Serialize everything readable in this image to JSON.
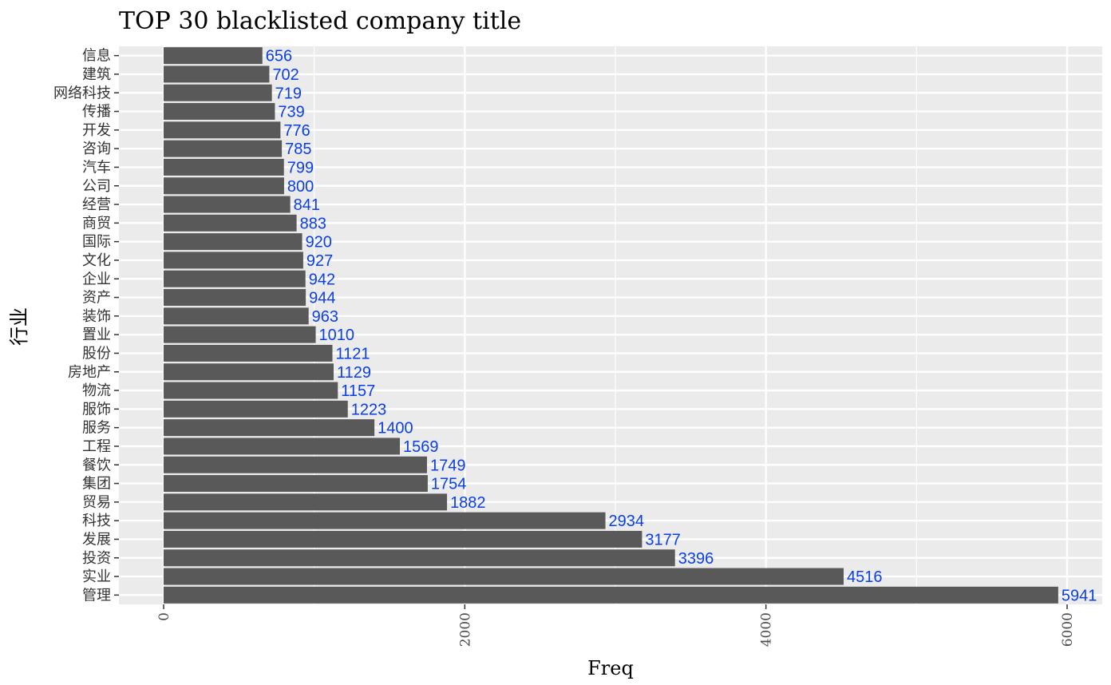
{
  "chart_data": {
    "type": "bar",
    "orientation": "horizontal",
    "title": "TOP 30 blacklisted company title",
    "xlabel": "Freq",
    "ylabel": "行业",
    "xlim": [
      -300,
      6250
    ],
    "xticks": [
      0,
      2000,
      4000,
      6000
    ],
    "minor_gridlines": true,
    "grid": true,
    "legend": "none",
    "categories": [
      "管理",
      "实业",
      "投资",
      "发展",
      "科技",
      "贸易",
      "集团",
      "餐饮",
      "工程",
      "服务",
      "服饰",
      "物流",
      "房地产",
      "股份",
      "置业",
      "装饰",
      "资产",
      "企业",
      "文化",
      "国际",
      "商贸",
      "经营",
      "公司",
      "汽车",
      "咨询",
      "开发",
      "传播",
      "网络科技",
      "建筑",
      "信息"
    ],
    "values": [
      5941,
      4516,
      3396,
      3177,
      2934,
      1882,
      1754,
      1749,
      1569,
      1400,
      1223,
      1157,
      1129,
      1121,
      1010,
      963,
      944,
      942,
      927,
      920,
      883,
      841,
      800,
      799,
      785,
      776,
      739,
      719,
      702,
      656
    ],
    "colors": {
      "bar": "#595959",
      "panel": "#ebebeb",
      "grid": "#ffffff",
      "data_label": "#0b3fe6"
    }
  }
}
